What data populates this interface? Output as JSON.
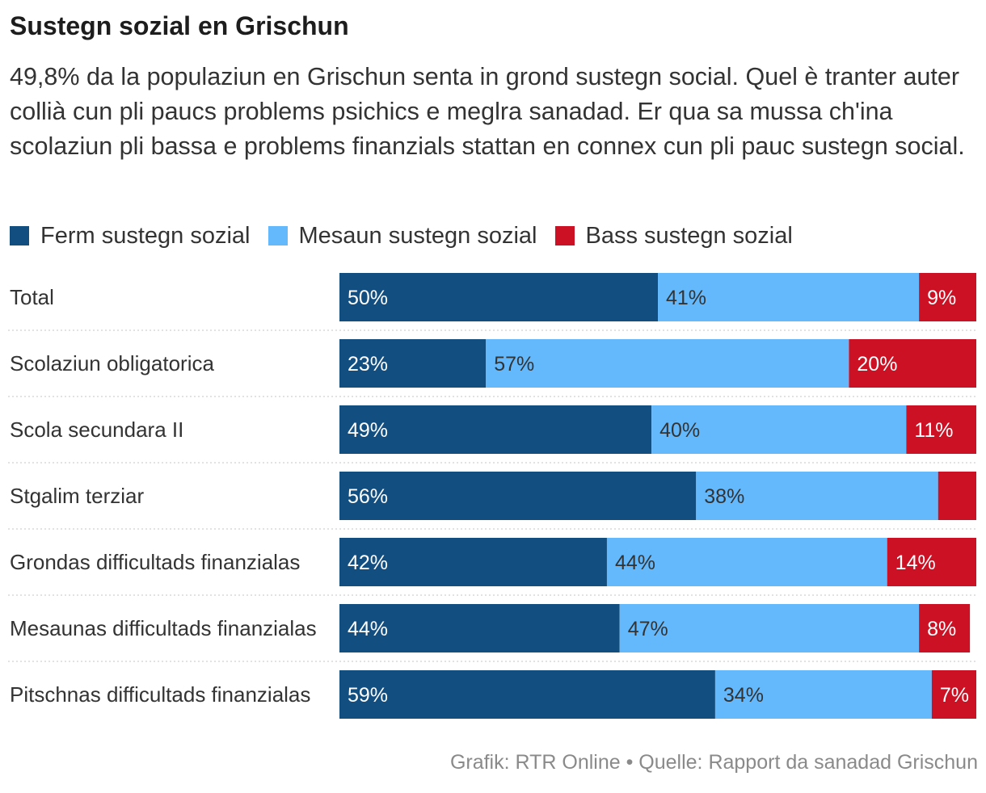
{
  "header": {
    "title": "Sustegn sozial en Grischun",
    "subtitle": "49,8% da la populaziun en Grischun senta in grond sustegn social. Quel è tranter auter collià cun pli paucs problems psichics e meglra sanadad. Er qua sa mussa ch'ina scolaziun pli bassa e problems finanzials stattan en connex cun pli pauc sustegn social."
  },
  "legend": [
    {
      "label": "Ferm sustegn sozial",
      "color": "#124e80"
    },
    {
      "label": "Mesaun sustegn sozial",
      "color": "#64b9fd"
    },
    {
      "label": "Bass sustegn sozial",
      "color": "#cc1124"
    }
  ],
  "chart_data": {
    "type": "bar",
    "orientation": "horizontal",
    "stacked": true,
    "normalized": "percent",
    "categories": [
      "Total",
      "Scolaziun obligatorica",
      "Scola secundara II",
      "Stgalim terziar",
      "Grondas difficultads finanzialas",
      "Mesaunas difficultads finanzialas",
      "Pitschnas difficultads finanzialas"
    ],
    "series": [
      {
        "name": "Ferm sustegn sozial",
        "color": "#124e80",
        "values": [
          50,
          23,
          49,
          56,
          42,
          44,
          59
        ],
        "labels": [
          "50%",
          "23%",
          "49%",
          "56%",
          "42%",
          "44%",
          "59%"
        ]
      },
      {
        "name": "Mesaun sustegn sozial",
        "color": "#64b9fd",
        "values": [
          41,
          57,
          40,
          38,
          44,
          47,
          34
        ],
        "labels": [
          "41%",
          "57%",
          "40%",
          "38%",
          "44%",
          "47%",
          "34%"
        ]
      },
      {
        "name": "Bass sustegn sozial",
        "color": "#cc1124",
        "values": [
          9,
          20,
          11,
          6,
          14,
          8,
          7
        ],
        "labels": [
          "9%",
          "20%",
          "11%",
          "",
          "14%",
          "8%",
          "7%"
        ]
      }
    ],
    "xlim": [
      0,
      100
    ],
    "legend_position": "top-left",
    "grid": false
  },
  "footer": {
    "source": "Grafik: RTR Online • Quelle: Rapport da sanadad Grischun"
  }
}
